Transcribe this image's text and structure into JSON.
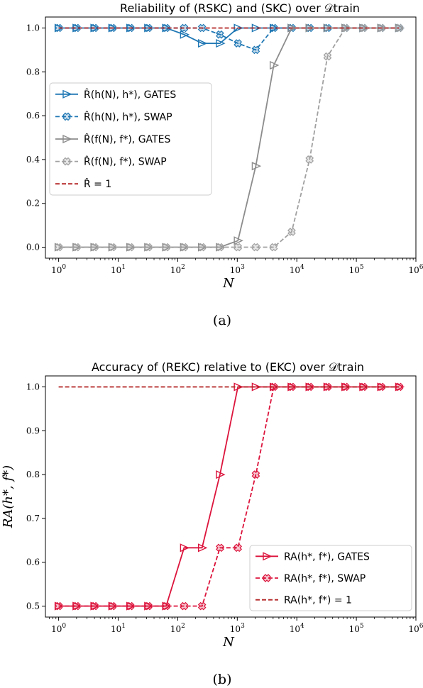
{
  "figure": {
    "captions": [
      "(a)",
      "(b)"
    ]
  },
  "chart_data": [
    {
      "type": "line",
      "title": "Reliability of (RSKC) and (SKC) over 𝒟train",
      "xlabel": "N",
      "ylabel": "",
      "xscale": "log",
      "xlim": [
        0.6,
        1000000
      ],
      "ylim": [
        -0.05,
        1.05
      ],
      "xticks": [
        "10^0",
        "10^1",
        "10^2",
        "10^3",
        "10^4",
        "10^5",
        "10^6"
      ],
      "yticks": [
        "0.0",
        "0.2",
        "0.4",
        "0.6",
        "0.8",
        "1.0"
      ],
      "legend_position": "center-left",
      "x": [
        1,
        2,
        4,
        8,
        16,
        32,
        64,
        128,
        256,
        512,
        1024,
        2048,
        4096,
        8192,
        16384,
        32768,
        65536,
        131072,
        262144,
        524288
      ],
      "series": [
        {
          "name": "R̂(h(N), h*), GATES",
          "color": "#1f77b4",
          "style": "solid",
          "marker": "triangle",
          "values": [
            1,
            1,
            1,
            1,
            1,
            1,
            1,
            0.97,
            0.93,
            0.93,
            1,
            1,
            1,
            1,
            1,
            1,
            1,
            1,
            1,
            1
          ]
        },
        {
          "name": "R̂(h(N), h*), SWAP",
          "color": "#1f77b4",
          "style": "dashed",
          "marker": "x",
          "values": [
            1,
            1,
            1,
            1,
            1,
            1,
            1,
            1,
            1,
            0.97,
            0.93,
            0.9,
            1,
            1,
            1,
            1,
            1,
            1,
            1,
            1
          ]
        },
        {
          "name": "R̂(f(N), f*), GATES",
          "color": "#8c8c8c",
          "style": "solid",
          "marker": "triangle",
          "values": [
            0,
            0,
            0,
            0,
            0,
            0,
            0,
            0,
            0,
            0,
            0.03,
            0.37,
            0.83,
            1,
            1,
            1,
            1,
            1,
            1,
            1
          ]
        },
        {
          "name": "R̂(f(N), f*), SWAP",
          "color": "#a0a0a0",
          "style": "dashed",
          "marker": "x",
          "values": [
            0,
            0,
            0,
            0,
            0,
            0,
            0,
            0,
            0,
            0,
            0,
            0,
            0,
            0.07,
            0.4,
            0.87,
            1,
            1,
            1,
            1
          ]
        },
        {
          "name": "R̂ = 1",
          "color": "#b22222",
          "style": "dashed",
          "marker": "none",
          "values": [
            1,
            1,
            1,
            1,
            1,
            1,
            1,
            1,
            1,
            1,
            1,
            1,
            1,
            1,
            1,
            1,
            1,
            1,
            1,
            1
          ]
        }
      ]
    },
    {
      "type": "line",
      "title": "Accuracy of (REKC) relative to (EKC) over 𝒟train",
      "xlabel": "N",
      "ylabel": "RA(h*, f*)",
      "xscale": "log",
      "xlim": [
        0.6,
        1000000
      ],
      "ylim": [
        0.475,
        1.025
      ],
      "xticks": [
        "10^0",
        "10^1",
        "10^2",
        "10^3",
        "10^4",
        "10^5",
        "10^6"
      ],
      "yticks": [
        "0.5",
        "0.6",
        "0.7",
        "0.8",
        "0.9",
        "1.0"
      ],
      "legend_position": "lower-right",
      "x": [
        1,
        2,
        4,
        8,
        16,
        32,
        64,
        128,
        256,
        512,
        1024,
        2048,
        4096,
        8192,
        16384,
        32768,
        65536,
        131072,
        262144,
        524288
      ],
      "series": [
        {
          "name": "RA(h*, f*), GATES",
          "color": "#dc143c",
          "style": "solid",
          "marker": "triangle",
          "values": [
            0.5,
            0.5,
            0.5,
            0.5,
            0.5,
            0.5,
            0.5,
            0.633,
            0.633,
            0.8,
            1,
            1,
            1,
            1,
            1,
            1,
            1,
            1,
            1,
            1
          ]
        },
        {
          "name": "RA(h*, f*), SWAP",
          "color": "#dc143c",
          "style": "dashed",
          "marker": "x",
          "values": [
            0.5,
            0.5,
            0.5,
            0.5,
            0.5,
            0.5,
            0.5,
            0.5,
            0.5,
            0.633,
            0.633,
            0.8,
            1,
            1,
            1,
            1,
            1,
            1,
            1,
            1
          ]
        },
        {
          "name": "RA(h*, f*) = 1",
          "color": "#b22222",
          "style": "dashed",
          "marker": "none",
          "values": [
            1,
            1,
            1,
            1,
            1,
            1,
            1,
            1,
            1,
            1,
            1,
            1,
            1,
            1,
            1,
            1,
            1,
            1,
            1,
            1
          ]
        }
      ]
    }
  ]
}
